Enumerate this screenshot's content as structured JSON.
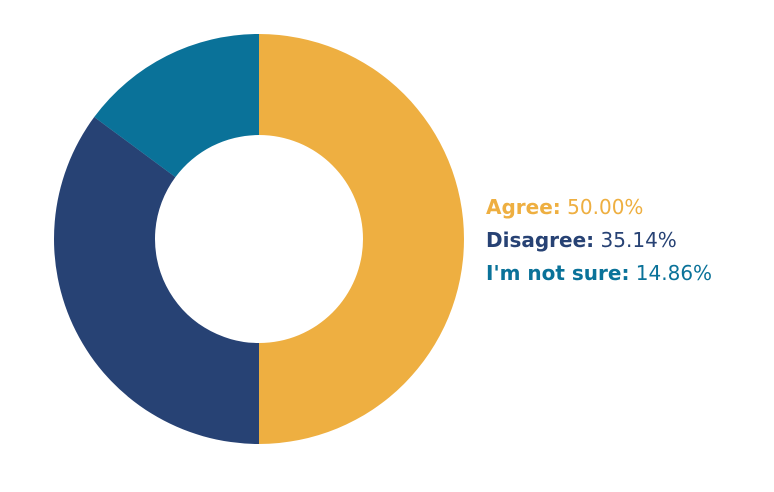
{
  "chart_data": {
    "type": "pie",
    "style": "donut",
    "slices": [
      {
        "label": "Agree:",
        "value": "50.00%",
        "percent": 50.0,
        "color": "#EEAF41"
      },
      {
        "label": "Disagree:",
        "value": "35.14%",
        "percent": 35.14,
        "color": "#274274"
      },
      {
        "label": "I'm not sure:",
        "value": "14.86%",
        "percent": 14.86,
        "color": "#0A7299"
      }
    ],
    "legend_position": "right",
    "start": "top",
    "direction": "clockwise"
  }
}
